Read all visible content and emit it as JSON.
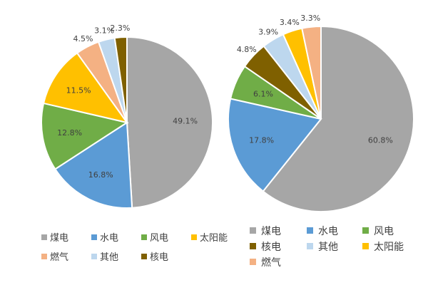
{
  "chart_data": [
    {
      "type": "pie",
      "title": "",
      "slices": [
        {
          "label": "煤电",
          "value": 49.1,
          "display": "49.1%",
          "color": "#a6a6a6"
        },
        {
          "label": "水电",
          "value": 16.8,
          "display": "16.8%",
          "color": "#5b9bd5"
        },
        {
          "label": "风电",
          "value": 12.8,
          "display": "12.8%",
          "color": "#70ad47"
        },
        {
          "label": "太阳能",
          "value": 11.5,
          "display": "11.5%",
          "color": "#ffc000"
        },
        {
          "label": "燃气",
          "value": 4.5,
          "display": "4.5%",
          "color": "#f4b183"
        },
        {
          "label": "其他",
          "value": 3.1,
          "display": "3.1%",
          "color": "#bdd7ee"
        },
        {
          "label": "核电",
          "value": 2.3,
          "display": "2.3%",
          "color": "#7f6000"
        }
      ],
      "legend": {
        "position": "bottom",
        "entries": [
          "煤电",
          "水电",
          "风电",
          "太阳能",
          "燃气",
          "其他",
          "核电"
        ]
      }
    },
    {
      "type": "pie",
      "title": "",
      "slices": [
        {
          "label": "煤电",
          "value": 60.8,
          "display": "60.8%",
          "color": "#a6a6a6"
        },
        {
          "label": "水电",
          "value": 17.8,
          "display": "17.8%",
          "color": "#5b9bd5"
        },
        {
          "label": "风电",
          "value": 6.1,
          "display": "6.1%",
          "color": "#70ad47"
        },
        {
          "label": "核电",
          "value": 4.8,
          "display": "4.8%",
          "color": "#7f6000"
        },
        {
          "label": "其他",
          "value": 3.9,
          "display": "3.9%",
          "color": "#bdd7ee"
        },
        {
          "label": "太阳能",
          "value": 3.4,
          "display": "3.4%",
          "color": "#ffc000"
        },
        {
          "label": "燃气",
          "value": 3.3,
          "display": "3.3%",
          "color": "#f4b183"
        }
      ],
      "legend": {
        "position": "bottom",
        "entries": [
          "煤电",
          "水电",
          "风电",
          "核电",
          "其他",
          "太阳能",
          "燃气"
        ]
      }
    }
  ]
}
